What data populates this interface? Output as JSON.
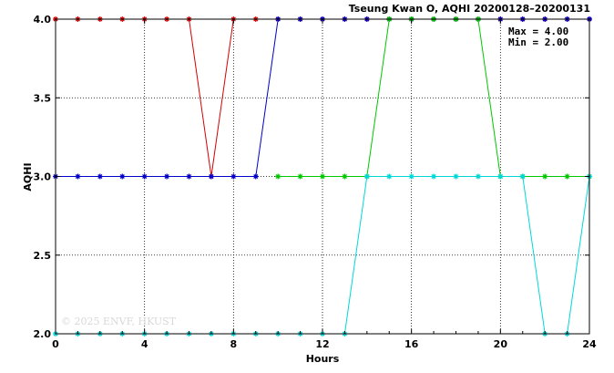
{
  "chart_data": {
    "type": "line",
    "title": "Tseung Kwan O, AQHI 20200128–20200131",
    "xlabel": "Hours",
    "ylabel": "AQHI",
    "xlim": [
      0,
      24
    ],
    "ylim": [
      2.0,
      4.0
    ],
    "x_ticks": [
      0,
      4,
      8,
      12,
      16,
      20,
      24
    ],
    "y_ticks": [
      2.0,
      2.5,
      3.0,
      3.5,
      4.0
    ],
    "x_tick_labels": [
      "0",
      "4",
      "8",
      "12",
      "16",
      "20",
      "24"
    ],
    "y_tick_labels": [
      "2.0",
      "2.5",
      "3.0",
      "3.5",
      "4.0"
    ],
    "grid": true,
    "stats": {
      "max_label": "Max = 4.00",
      "min_label": "Min = 2.00"
    },
    "watermark": "© 2025 ENVF, HKUST",
    "series": [
      {
        "color": "#d40000",
        "x": [
          0,
          1,
          2,
          3,
          4,
          5,
          6,
          7,
          8,
          9,
          10,
          11,
          12,
          13,
          14,
          15,
          16,
          17,
          18,
          19,
          20,
          21,
          22,
          23,
          24
        ],
        "y": [
          4,
          4,
          4,
          4,
          4,
          4,
          4,
          3,
          4,
          4,
          4,
          4,
          4,
          4,
          4,
          4,
          4,
          4,
          4,
          4,
          4,
          4,
          4,
          4,
          4
        ]
      },
      {
        "color": "#0000c8",
        "x": [
          0,
          1,
          2,
          3,
          4,
          5,
          6,
          7,
          8,
          9,
          10,
          11,
          12,
          13,
          14,
          15,
          16,
          17,
          18,
          19,
          20,
          21,
          22,
          23,
          24
        ],
        "y": [
          3,
          3,
          3,
          3,
          3,
          3,
          3,
          3,
          3,
          3,
          4,
          4,
          4,
          4,
          4,
          4,
          4,
          4,
          4,
          4,
          4,
          4,
          4,
          4,
          4
        ]
      },
      {
        "color": "#00c800",
        "x": [
          10,
          11,
          12,
          13,
          14,
          15,
          16,
          17,
          18,
          19,
          20,
          21,
          22,
          23,
          24
        ],
        "y": [
          3,
          3,
          3,
          3,
          3,
          4,
          4,
          4,
          4,
          4,
          3,
          3,
          3,
          3,
          3
        ]
      },
      {
        "color": "#00d8d8",
        "x": [
          0,
          1,
          2,
          3,
          4,
          5,
          6,
          7,
          8,
          9,
          10,
          11,
          12,
          13,
          14,
          15,
          16,
          17,
          18,
          19,
          20,
          21,
          22,
          23,
          24
        ],
        "y": [
          2,
          2,
          2,
          2,
          2,
          2,
          2,
          2,
          2,
          2,
          2,
          2,
          2,
          2,
          3,
          3,
          3,
          3,
          3,
          3,
          3,
          3,
          2,
          2,
          3
        ]
      }
    ]
  }
}
